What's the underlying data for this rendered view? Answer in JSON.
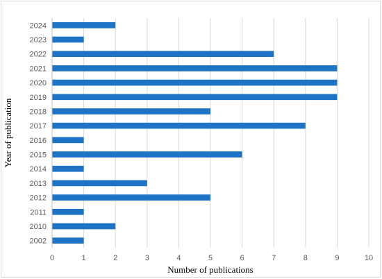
{
  "chart_data": {
    "type": "bar",
    "orientation": "horizontal",
    "title": "",
    "xlabel": "Number of publications",
    "ylabel": "Year of publication",
    "categories": [
      "2024",
      "2023",
      "2022",
      "2021",
      "2020",
      "2019",
      "2018",
      "2017",
      "2016",
      "2015",
      "2014",
      "2013",
      "2012",
      "2011",
      "2010",
      "2002"
    ],
    "values": [
      2,
      1,
      7,
      9,
      9,
      9,
      5,
      8,
      1,
      6,
      1,
      3,
      5,
      1,
      2,
      1
    ],
    "xlim": [
      0,
      10
    ],
    "xticks": [
      "0",
      "1",
      "2",
      "3",
      "4",
      "5",
      "6",
      "7",
      "8",
      "9",
      "10"
    ],
    "grid": "vertical",
    "legend": "none",
    "bar_color": "#1f73c4",
    "grid_color": "#d9d9d9"
  }
}
